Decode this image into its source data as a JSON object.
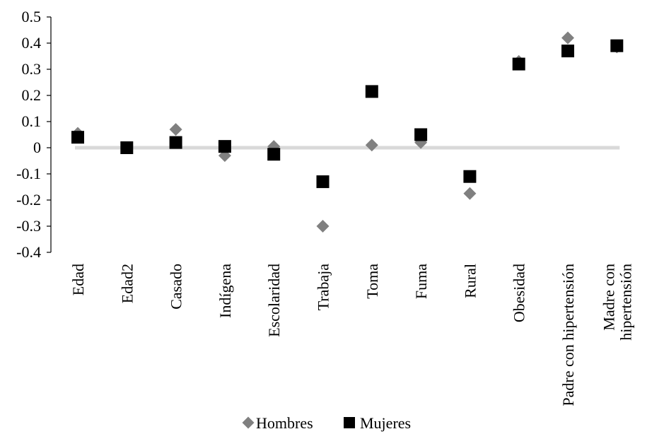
{
  "chart_data": {
    "type": "scatter",
    "title": "",
    "xlabel": "",
    "ylabel": "",
    "ylim": [
      -0.4,
      0.5
    ],
    "yticks": [
      "0.5",
      "0.4",
      "0.3",
      "0.2",
      "0.1",
      "0",
      "-0.1",
      "-0.2",
      "-0.3",
      "-0.4"
    ],
    "ytick_values": [
      0.5,
      0.4,
      0.3,
      0.2,
      0.1,
      0,
      -0.1,
      -0.2,
      -0.3,
      -0.4
    ],
    "categories": [
      [
        "Edad"
      ],
      [
        "Edad2"
      ],
      [
        "Casado"
      ],
      [
        "Indígena"
      ],
      [
        "Escolaridad"
      ],
      [
        "Trabaja"
      ],
      [
        "Toma"
      ],
      [
        "Fuma"
      ],
      [
        "Rural"
      ],
      [
        "Obesidad"
      ],
      [
        "Padre con hipertensión"
      ],
      [
        "Madre con",
        "hipertensión"
      ]
    ],
    "series": [
      {
        "name": "Hombres",
        "marker": "diamond",
        "color": "#808080",
        "values": [
          0.055,
          0.0,
          0.07,
          -0.03,
          0.005,
          -0.3,
          0.01,
          0.02,
          -0.175,
          0.33,
          0.42,
          0.385
        ]
      },
      {
        "name": "Mujeres",
        "marker": "square",
        "color": "#000000",
        "values": [
          0.04,
          0.0,
          0.02,
          0.005,
          -0.025,
          -0.13,
          0.215,
          0.05,
          -0.11,
          0.32,
          0.37,
          0.39
        ]
      }
    ],
    "zero_line_color": "#d9d9d9",
    "grid": false,
    "legend_position": "bottom"
  }
}
